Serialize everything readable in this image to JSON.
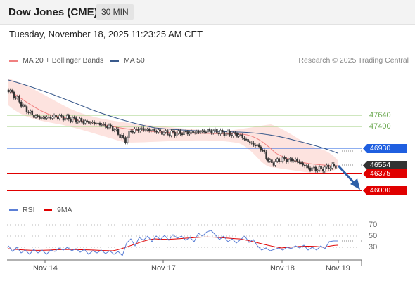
{
  "header": {
    "title": "Dow Jones (CME)",
    "timeframe": "30 MIN"
  },
  "datetime": "Tuesday, November 18, 2025 11:23:25 AM CET",
  "legend": {
    "ma20": "MA 20 + Bollinger Bands",
    "ma50": "MA 50",
    "ma20_color": "#f08080",
    "ma50_color": "#3a5a8c"
  },
  "research": "Research © 2025 Trading Central",
  "levels": {
    "r2": "47640",
    "r1": "47400",
    "pivot": "46930",
    "current": "46554",
    "s1": "46375",
    "s2": "46000"
  },
  "rsi_legend": {
    "rsi": "RSI",
    "ma": "9MA",
    "rsi_color": "#5b7fd6",
    "ma_color": "#e00000"
  },
  "rsi_ticks": [
    "70",
    "50",
    "30"
  ],
  "x_axis": [
    "Nov 14",
    "Nov 17",
    "Nov 18",
    "Nov 19"
  ],
  "colors": {
    "resistance": "#6aa84f",
    "pivot": "#1f5fe0",
    "support": "#e00000",
    "current": "#333333"
  }
}
